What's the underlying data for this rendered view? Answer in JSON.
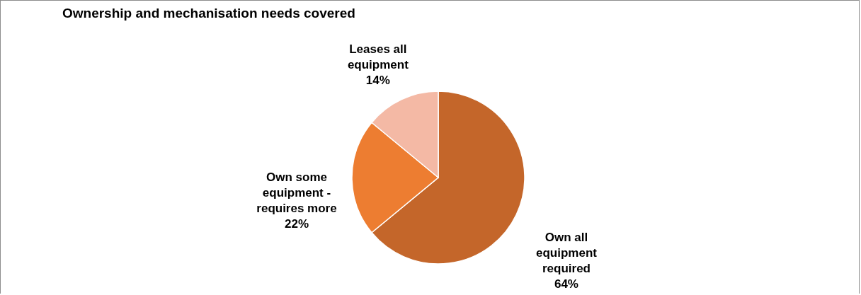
{
  "chart_data": {
    "type": "pie",
    "title": "Ownership and mechanisation needs covered",
    "categories": [
      "Own all equipment required",
      "Own some equipment - requires more",
      "Leases all equipment"
    ],
    "values": [
      64,
      22,
      14
    ],
    "colors": [
      "#c4662a",
      "#ed7d31",
      "#f4b9a5"
    ],
    "value_labels": [
      "64%",
      "22%",
      "14%"
    ]
  }
}
